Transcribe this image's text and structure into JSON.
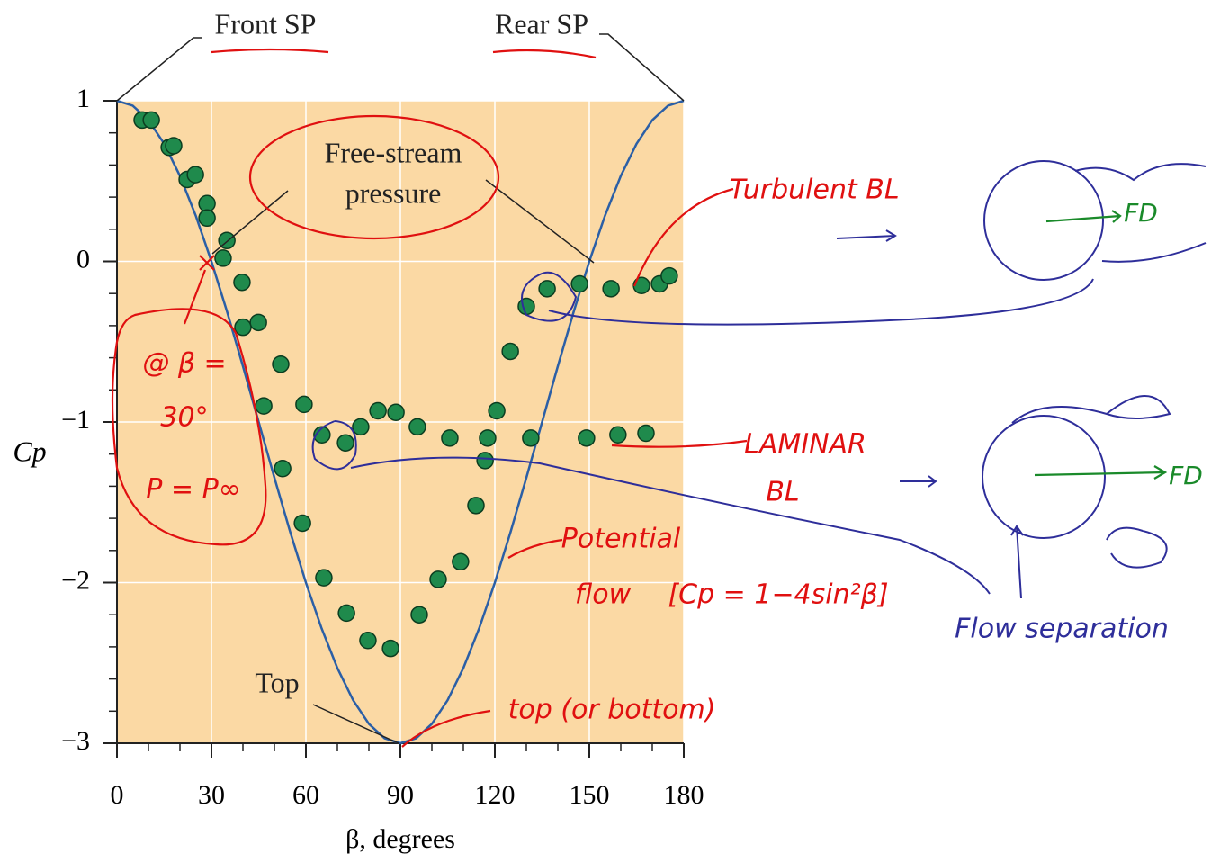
{
  "chart_data": {
    "type": "scatter",
    "xlabel": "β, degrees",
    "ylabel": "Cp",
    "xlim": [
      0,
      180
    ],
    "ylim": [
      -3,
      1
    ],
    "xticks": [
      0,
      30,
      60,
      90,
      120,
      150,
      180
    ],
    "yticks": [
      {
        "value": -3,
        "label": "−3"
      },
      {
        "value": -2,
        "label": "−2"
      },
      {
        "value": -1,
        "label": "−1"
      },
      0,
      1
    ],
    "xminorticks": [
      10,
      20,
      40,
      50,
      70,
      80,
      100,
      110,
      130,
      140,
      160,
      170
    ],
    "yminorticks": [
      -2.8,
      -2.6,
      -2.4,
      -2.2,
      -1.8,
      -1.6,
      -1.4,
      -1.2,
      -0.8,
      -0.6,
      -0.4,
      -0.2,
      0.2,
      0.4,
      0.6,
      0.8
    ],
    "grid": true,
    "background": "#fbd9a4",
    "series": [
      {
        "type": "line",
        "color": "#2b5fa6",
        "x": [
          0,
          5,
          10,
          15,
          20,
          25,
          30,
          35,
          40,
          45,
          50,
          55,
          60,
          65,
          70,
          75,
          80,
          85,
          90,
          95,
          100,
          105,
          110,
          115,
          120,
          125,
          130,
          135,
          140,
          145,
          150,
          155,
          160,
          165,
          170,
          175,
          180
        ],
        "values": [
          1,
          0.9696,
          0.8794,
          0.7321,
          0.5321,
          0.2856,
          0,
          -0.316,
          -0.6527,
          -1,
          -1.3473,
          -1.684,
          -2,
          -2.2856,
          -2.5321,
          -2.7321,
          -2.8794,
          -2.9696,
          -3,
          -2.9696,
          -2.8794,
          -2.7321,
          -2.5321,
          -2.2856,
          -2,
          -1.684,
          -1.3473,
          -1,
          -0.6527,
          -0.316,
          0,
          0.2856,
          0.5321,
          0.7321,
          0.8794,
          0.9696,
          1
        ]
      },
      {
        "type": "scatter",
        "color": "#1f8a4c",
        "x": [
          8,
          10.9,
          16.6,
          18,
          22.3,
          24.9,
          28.6,
          28.6,
          34.9,
          33.7,
          39.7,
          40,
          44.9,
          46.6,
          52,
          52.6,
          59.4,
          58.9,
          65.7,
          65.1,
          72.6,
          72.9,
          77.4,
          79.7,
          82.9,
          86.9,
          88.6,
          95.4,
          96,
          102,
          105.7,
          109.1,
          114,
          116.9,
          117.7,
          120.6,
          124.9,
          130,
          131.4,
          136.6,
          146.9,
          149.1,
          156.9,
          159.1,
          166.6,
          168,
          172.3,
          175.4
        ],
        "values": [
          0.88,
          0.88,
          0.71,
          0.72,
          0.51,
          0.54,
          0.36,
          0.27,
          0.13,
          0.02,
          -0.13,
          -0.41,
          -0.38,
          -0.9,
          -0.64,
          -1.29,
          -0.89,
          -1.63,
          -1.97,
          -1.08,
          -1.13,
          -2.19,
          -1.03,
          -2.36,
          -0.93,
          -2.41,
          -0.94,
          -1.03,
          -2.2,
          -1.98,
          -1.1,
          -1.87,
          -1.52,
          -1.24,
          -1.1,
          -0.93,
          -0.56,
          -0.28,
          -1.1,
          -0.17,
          -0.14,
          -1.1,
          -0.17,
          -1.08,
          -0.15,
          -1.07,
          -0.14,
          -0.09
        ]
      }
    ],
    "annotations": [
      "Front SP",
      "Rear SP",
      "Free-stream",
      "pressure",
      "Top",
      "Turbulent BL",
      "LAMINAR",
      "BL",
      "Potential",
      "flow",
      "[Cp = 1−4sin²β]",
      "@ β =",
      "30°",
      "P = P∞",
      "top (or bottom)",
      "Flow separation",
      "FD",
      "FD"
    ]
  }
}
